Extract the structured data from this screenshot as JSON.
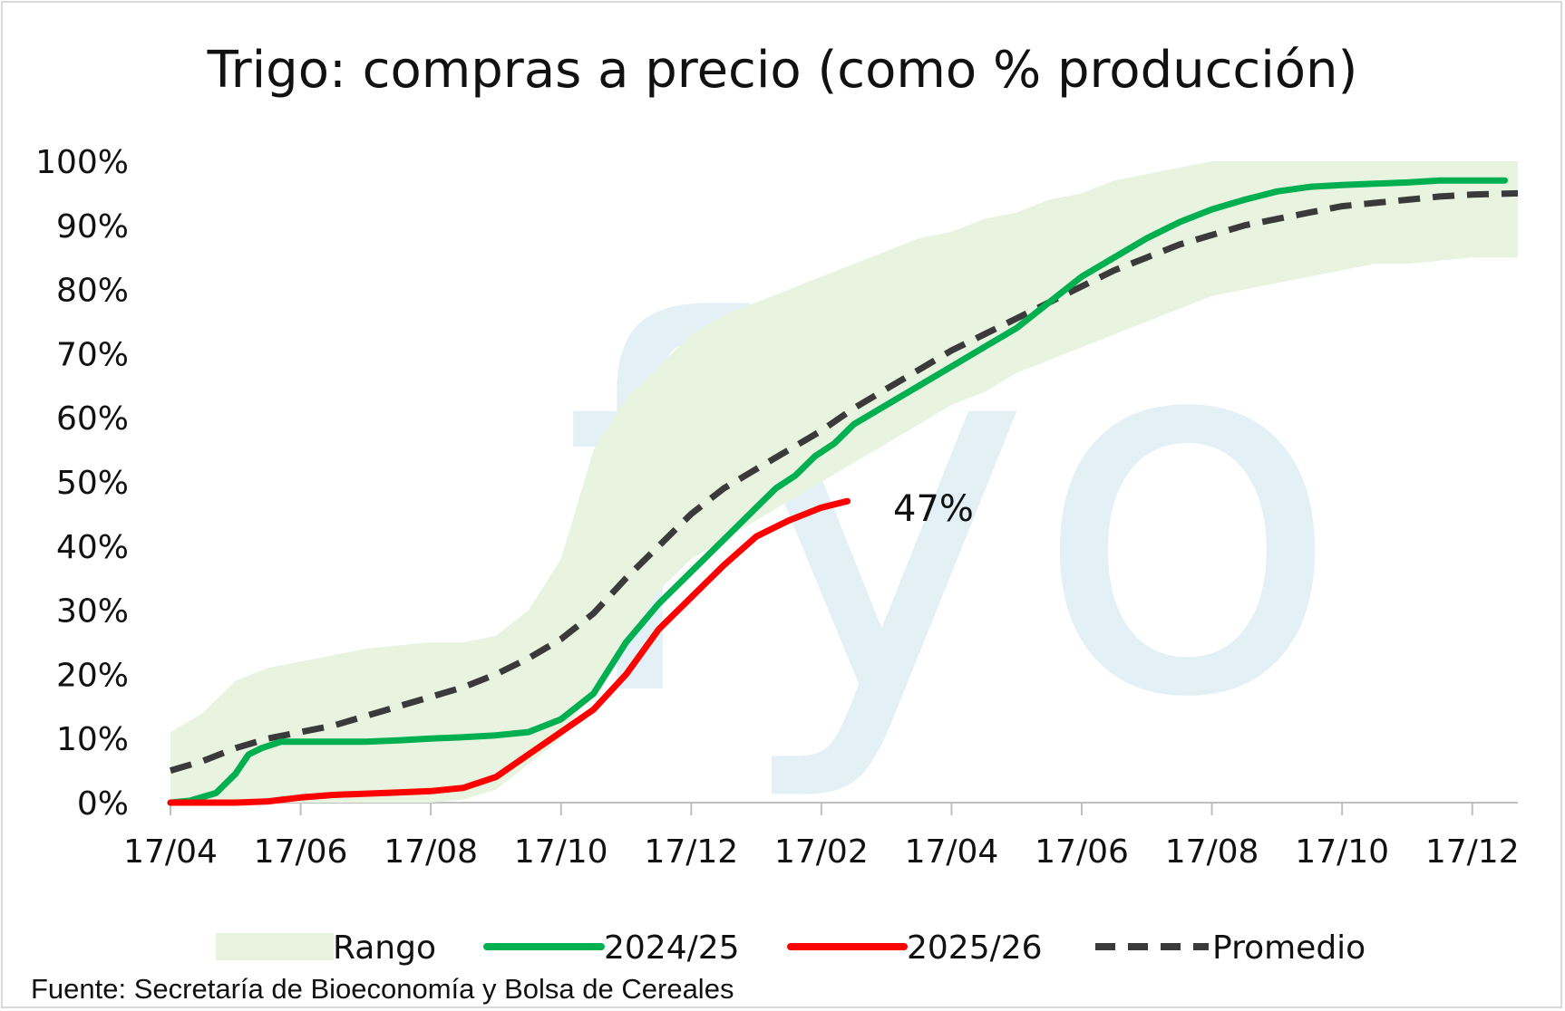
{
  "chart_data": {
    "type": "line",
    "title": "Trigo: compras a precio (como % producción)",
    "source": "Fuente: Secretaría de Bioeconomía y Bolsa de Cereales",
    "annotation": "47%",
    "x_tick_labels": [
      "17/04",
      "17/06",
      "17/08",
      "17/10",
      "17/12",
      "17/02",
      "17/04",
      "17/06",
      "17/08",
      "17/10",
      "17/12"
    ],
    "y_tick_labels": [
      "0%",
      "10%",
      "20%",
      "30%",
      "40%",
      "50%",
      "60%",
      "70%",
      "80%",
      "90%",
      "100%"
    ],
    "xlim": [
      0,
      20.7
    ],
    "ylim": [
      0,
      100
    ],
    "watermark": "fyo",
    "legend": {
      "placement": "bottom",
      "items": [
        {
          "label": "Rango",
          "kind": "band",
          "color": "#e8f3e0"
        },
        {
          "label": "2024/25",
          "kind": "line",
          "color": "#00b050"
        },
        {
          "label": "2025/26",
          "kind": "line",
          "color": "#ff0000"
        },
        {
          "label": "Promedio",
          "kind": "dashed",
          "color": "#3a3a3a"
        }
      ]
    },
    "range_band": {
      "name": "Rango",
      "color": "#e8f3e0",
      "x": [
        0,
        0.5,
        1,
        1.5,
        2,
        2.5,
        3,
        3.5,
        4,
        4.5,
        5,
        5.5,
        6,
        6.5,
        7,
        7.5,
        8,
        8.5,
        9,
        9.5,
        10,
        10.5,
        11,
        11.5,
        12,
        12.5,
        13,
        13.5,
        14,
        14.5,
        15,
        15.5,
        16,
        16.5,
        17,
        17.5,
        18,
        18.5,
        19,
        19.5,
        20,
        20.7
      ],
      "upper": [
        11,
        14,
        19,
        21,
        22,
        23,
        24,
        24.5,
        25,
        25,
        26,
        30,
        38,
        55,
        63,
        68,
        73,
        76,
        78,
        80,
        82,
        84,
        86,
        88,
        89,
        91,
        92,
        94,
        95,
        97,
        98,
        99,
        100,
        100,
        100,
        100,
        100,
        100,
        100,
        100,
        100,
        100
      ],
      "lower": [
        0,
        0,
        0,
        0,
        0,
        0,
        0,
        0,
        0,
        0.5,
        2,
        6,
        10,
        18,
        25,
        33,
        38,
        41,
        44,
        47,
        50,
        53,
        56,
        59,
        62,
        64,
        67,
        69,
        71,
        73,
        75,
        77,
        79,
        80,
        81,
        82,
        83,
        84,
        84,
        84.5,
        85,
        85
      ]
    },
    "series": [
      {
        "name": "2024/25",
        "color": "#00b050",
        "x": [
          0,
          0.3,
          0.7,
          1.0,
          1.2,
          1.4,
          1.7,
          2.0,
          2.5,
          3.0,
          3.5,
          4.0,
          4.5,
          5.0,
          5.5,
          6.0,
          6.5,
          7.0,
          7.5,
          8.0,
          8.5,
          9.0,
          9.3,
          9.6,
          9.9,
          10.2,
          10.5,
          11.0,
          11.5,
          12.0,
          12.5,
          13.0,
          13.5,
          14.0,
          14.5,
          15.0,
          15.5,
          16.0,
          16.5,
          17.0,
          17.5,
          18.0,
          18.5,
          19.0,
          19.5,
          20.0,
          20.5
        ],
        "values": [
          0,
          0.3,
          1.5,
          4.5,
          7.5,
          8.5,
          9.5,
          9.5,
          9.5,
          9.5,
          9.7,
          10.0,
          10.2,
          10.5,
          11.0,
          13.0,
          17.0,
          25.0,
          31.0,
          36.0,
          41.0,
          46.0,
          49.0,
          51.0,
          54.0,
          56.0,
          59.0,
          62.0,
          65.0,
          68.0,
          71.0,
          74.0,
          78.0,
          82.0,
          85.0,
          88.0,
          90.5,
          92.5,
          94.0,
          95.3,
          96.0,
          96.3,
          96.5,
          96.7,
          97.0,
          97.0,
          97.0
        ]
      },
      {
        "name": "2025/26",
        "color": "#ff0000",
        "x": [
          0,
          0.5,
          1.0,
          1.5,
          2.0,
          2.5,
          3.0,
          3.5,
          4.0,
          4.5,
          5.0,
          5.5,
          6.0,
          6.5,
          7.0,
          7.5,
          8.0,
          8.5,
          9.0,
          9.5,
          10.0,
          10.4
        ],
        "values": [
          0,
          0,
          0,
          0.2,
          0.8,
          1.2,
          1.4,
          1.6,
          1.8,
          2.3,
          4.0,
          7.5,
          11.0,
          14.5,
          20.0,
          27.0,
          32.0,
          37.0,
          41.5,
          44.0,
          46.0,
          47.0
        ]
      },
      {
        "name": "Promedio",
        "color": "#3a3a3a",
        "dashed": true,
        "x": [
          0,
          0.5,
          1.0,
          1.5,
          2.0,
          2.5,
          3.0,
          3.5,
          4.0,
          4.5,
          5.0,
          5.5,
          6.0,
          6.5,
          7.0,
          7.5,
          8.0,
          8.5,
          9.0,
          9.5,
          10.0,
          10.5,
          11.0,
          11.5,
          12.0,
          12.5,
          13.0,
          13.5,
          14.0,
          14.5,
          15.0,
          15.5,
          16.0,
          16.5,
          17.0,
          17.5,
          18.0,
          18.5,
          19.0,
          19.5,
          20.0,
          20.7
        ],
        "values": [
          5,
          6.5,
          8.5,
          10.0,
          11.0,
          12.0,
          13.5,
          15.0,
          16.5,
          18.0,
          20.0,
          22.5,
          25.5,
          29.5,
          35.0,
          40.0,
          45.0,
          49.0,
          52.0,
          55.0,
          58.0,
          61.5,
          64.5,
          67.5,
          70.5,
          73.0,
          75.5,
          78.0,
          80.5,
          83.0,
          85.0,
          87.0,
          88.5,
          90.0,
          91.0,
          92.0,
          93.0,
          93.5,
          94.0,
          94.5,
          94.8,
          95.0
        ]
      }
    ]
  }
}
